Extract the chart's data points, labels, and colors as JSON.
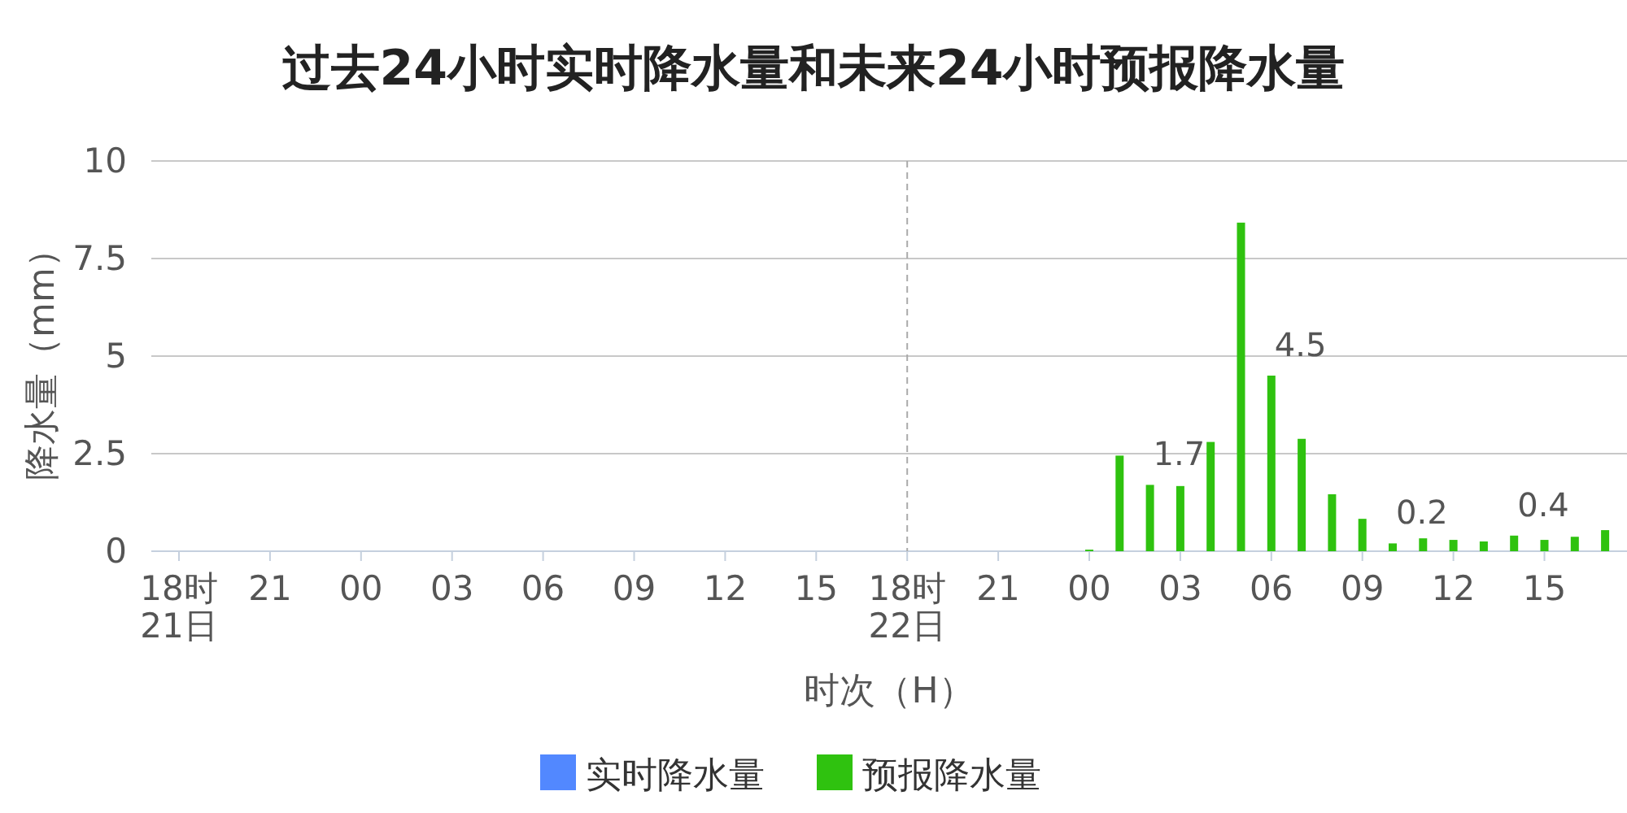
{
  "chart_data": {
    "type": "bar",
    "title": "过去24小时实时降水量和未来24小时预报降水量",
    "xlabel": "时次（H）",
    "ylabel": "降水量（mm）",
    "categories": [
      "18时\n21日",
      null,
      null,
      "21",
      null,
      null,
      "00",
      null,
      null,
      "03",
      null,
      null,
      "06",
      null,
      null,
      "09",
      null,
      null,
      "12",
      null,
      null,
      "15",
      null,
      null,
      "18时\n22日",
      null,
      null,
      "21",
      null,
      null,
      "00",
      null,
      null,
      "03",
      null,
      null,
      "06",
      null,
      null,
      "09",
      null,
      null,
      "12",
      null,
      null,
      "15",
      null,
      null
    ],
    "series": [
      {
        "name": "实时降水量",
        "color": "#5288ff",
        "values": [
          null,
          null,
          null,
          null,
          null,
          null,
          null,
          null,
          null,
          null,
          null,
          null,
          null,
          null,
          null,
          null,
          null,
          null,
          null,
          null,
          null,
          null,
          null,
          null,
          null,
          null,
          null,
          null,
          null,
          null,
          null,
          null,
          null,
          null,
          null,
          null,
          null,
          null,
          null,
          null,
          null,
          null,
          null,
          null,
          null,
          null,
          null,
          null
        ]
      },
      {
        "name": "预报降水量",
        "color": "#2fc20f",
        "values": [
          null,
          null,
          null,
          null,
          null,
          null,
          null,
          null,
          null,
          null,
          null,
          null,
          null,
          null,
          null,
          null,
          null,
          null,
          null,
          null,
          null,
          null,
          null,
          null,
          null,
          null,
          null,
          null,
          null,
          null,
          0.04,
          2.45,
          1.7,
          1.67,
          2.8,
          8.42,
          4.5,
          2.88,
          1.46,
          0.83,
          0.2,
          0.33,
          0.29,
          0.25,
          0.4,
          0.29,
          0.37,
          0.54
        ],
        "value_labels": [
          null,
          null,
          null,
          null,
          null,
          null,
          null,
          null,
          null,
          null,
          null,
          null,
          null,
          null,
          null,
          null,
          null,
          null,
          null,
          null,
          null,
          null,
          null,
          null,
          null,
          null,
          null,
          null,
          null,
          null,
          null,
          null,
          "1.7",
          null,
          null,
          null,
          "4.5",
          null,
          null,
          null,
          "0.2",
          null,
          null,
          null,
          "0.4",
          null,
          null,
          null
        ]
      }
    ],
    "ylim": [
      0,
      10
    ],
    "yticks": [
      0,
      {
        "value": 2.5,
        "label": "2.5"
      },
      5,
      {
        "value": 7.5,
        "label": "7.5"
      },
      10
    ],
    "grid": "y",
    "legend": "bottom",
    "ref_lines": [
      {
        "axis": "x",
        "value": "18时\n22日",
        "line_style": "dashed",
        "color": "#aaaaaa"
      }
    ]
  }
}
